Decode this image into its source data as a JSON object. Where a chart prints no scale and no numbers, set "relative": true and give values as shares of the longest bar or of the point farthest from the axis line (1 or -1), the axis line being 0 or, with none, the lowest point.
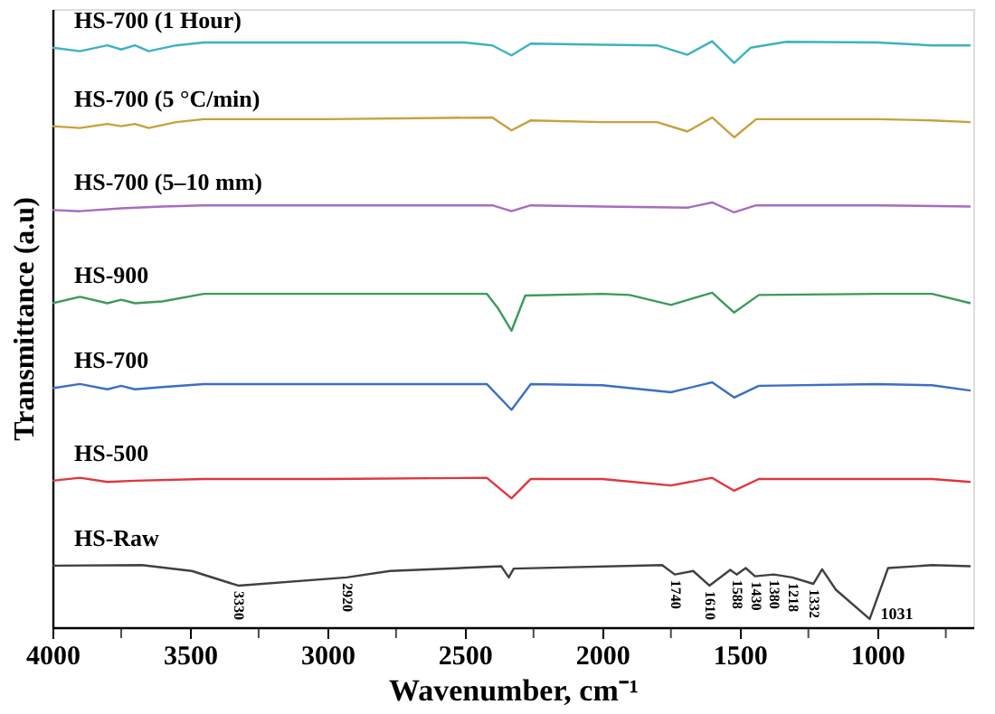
{
  "chart_data": {
    "type": "line",
    "relative": true,
    "xlabel": "Wavenumber, cm⁻¹",
    "ylabel": "Transmittance (a.u)",
    "xlim": [
      4000,
      650
    ],
    "xticks": [
      4000,
      {
        "value": 3750,
        "label": null
      },
      3500,
      {
        "value": 3250,
        "label": null
      },
      3000,
      {
        "value": 2750,
        "label": null
      },
      2500,
      {
        "value": 2250,
        "label": null
      },
      2000,
      {
        "value": 1750,
        "label": null
      },
      1500,
      {
        "value": 1250,
        "label": null
      },
      1000,
      {
        "value": 750,
        "label": null
      }
    ],
    "grid": false,
    "line_style": "solid",
    "marker": "none",
    "series": [
      {
        "name": "HS-700 (1 Hour)",
        "color": "#3bb3c3",
        "x": [
          4000,
          3900,
          3800,
          3750,
          3700,
          3650,
          3550,
          3450,
          3000,
          2500,
          2400,
          2330,
          2260,
          2000,
          1800,
          1690,
          1600,
          1520,
          1460,
          1330,
          1000,
          800,
          660
        ],
        "values": [
          0.989,
          0.983,
          0.993,
          0.986,
          0.993,
          0.983,
          0.993,
          0.998,
          0.998,
          0.998,
          0.993,
          0.976,
          0.996,
          0.994,
          0.993,
          0.977,
          1.0,
          0.963,
          0.989,
          0.999,
          0.998,
          0.993,
          0.993
        ]
      },
      {
        "name": "HS-700 (5 °C/min)",
        "color": "#c9a03c",
        "x": [
          4000,
          3900,
          3800,
          3750,
          3700,
          3650,
          3550,
          3450,
          3000,
          2400,
          2330,
          2260,
          2000,
          1800,
          1690,
          1600,
          1520,
          1440,
          1000,
          800,
          660
        ],
        "values": [
          0.855,
          0.852,
          0.859,
          0.855,
          0.859,
          0.852,
          0.862,
          0.867,
          0.867,
          0.87,
          0.848,
          0.865,
          0.862,
          0.862,
          0.846,
          0.87,
          0.836,
          0.867,
          0.867,
          0.865,
          0.862
        ]
      },
      {
        "name": "HS-700 (5–10 mm)",
        "color": "#a56cc1",
        "x": [
          4000,
          3900,
          3750,
          3600,
          3450,
          3000,
          2400,
          2330,
          2260,
          2000,
          1690,
          1600,
          1520,
          1440,
          1000,
          660
        ],
        "values": [
          0.712,
          0.71,
          0.715,
          0.718,
          0.72,
          0.72,
          0.72,
          0.71,
          0.72,
          0.718,
          0.716,
          0.725,
          0.708,
          0.72,
          0.72,
          0.718
        ]
      },
      {
        "name": "HS-900",
        "color": "#3d9a5a",
        "x": [
          4000,
          3900,
          3800,
          3750,
          3700,
          3600,
          3450,
          3000,
          2420,
          2380,
          2330,
          2280,
          2000,
          1900,
          1750,
          1600,
          1520,
          1430,
          1000,
          800,
          660
        ],
        "values": [
          0.553,
          0.564,
          0.553,
          0.559,
          0.553,
          0.556,
          0.569,
          0.569,
          0.569,
          0.545,
          0.506,
          0.566,
          0.569,
          0.567,
          0.55,
          0.571,
          0.537,
          0.567,
          0.569,
          0.569,
          0.553
        ]
      },
      {
        "name": "HS-700",
        "color": "#3a6fc4",
        "x": [
          4000,
          3900,
          3800,
          3750,
          3700,
          3600,
          3450,
          3000,
          2420,
          2330,
          2260,
          2000,
          1750,
          1600,
          1520,
          1430,
          1000,
          800,
          660
        ],
        "values": [
          0.408,
          0.415,
          0.406,
          0.412,
          0.406,
          0.41,
          0.415,
          0.415,
          0.415,
          0.371,
          0.415,
          0.413,
          0.401,
          0.418,
          0.392,
          0.412,
          0.415,
          0.413,
          0.404
        ]
      },
      {
        "name": "HS-500",
        "color": "#e0363d",
        "x": [
          4000,
          3900,
          3800,
          3700,
          3450,
          3000,
          2420,
          2330,
          2260,
          2000,
          1750,
          1600,
          1520,
          1430,
          1000,
          800,
          660
        ],
        "values": [
          0.25,
          0.255,
          0.248,
          0.25,
          0.253,
          0.253,
          0.255,
          0.22,
          0.253,
          0.253,
          0.242,
          0.255,
          0.233,
          0.253,
          0.253,
          0.253,
          0.248
        ]
      },
      {
        "name": "HS-Raw",
        "color": "#404040",
        "x": [
          4000,
          3674,
          3493,
          3324,
          2930,
          2772,
          2367,
          2340,
          2322,
          1782,
          1736,
          1669,
          1610,
          1534,
          1511,
          1478,
          1444,
          1376,
          1309,
          1232,
          1200,
          1150,
          1027,
          960,
          800,
          660
        ],
        "values": [
          0.105,
          0.106,
          0.096,
          0.071,
          0.085,
          0.096,
          0.104,
          0.085,
          0.1,
          0.106,
          0.09,
          0.096,
          0.071,
          0.098,
          0.09,
          0.101,
          0.087,
          0.09,
          0.085,
          0.074,
          0.099,
          0.064,
          0.014,
          0.101,
          0.106,
          0.104
        ]
      }
    ],
    "annotations": [
      {
        "text": "3330",
        "x": 3324,
        "y": 0.071
      },
      {
        "text": "2920",
        "x": 2930,
        "y": 0.085
      },
      {
        "text": "1740",
        "x": 1736,
        "y": 0.09
      },
      {
        "text": "1610",
        "x": 1610,
        "y": 0.071
      },
      {
        "text": "1588",
        "x": 1511,
        "y": 0.09
      },
      {
        "text": "1430",
        "x": 1444,
        "y": 0.087
      },
      {
        "text": "1380",
        "x": 1376,
        "y": 0.09
      },
      {
        "text": "1218",
        "x": 1309,
        "y": 0.085
      },
      {
        "text": "1332",
        "x": 1232,
        "y": 0.074
      },
      {
        "text": "1031",
        "x": 1027,
        "y": 0.014
      }
    ]
  }
}
